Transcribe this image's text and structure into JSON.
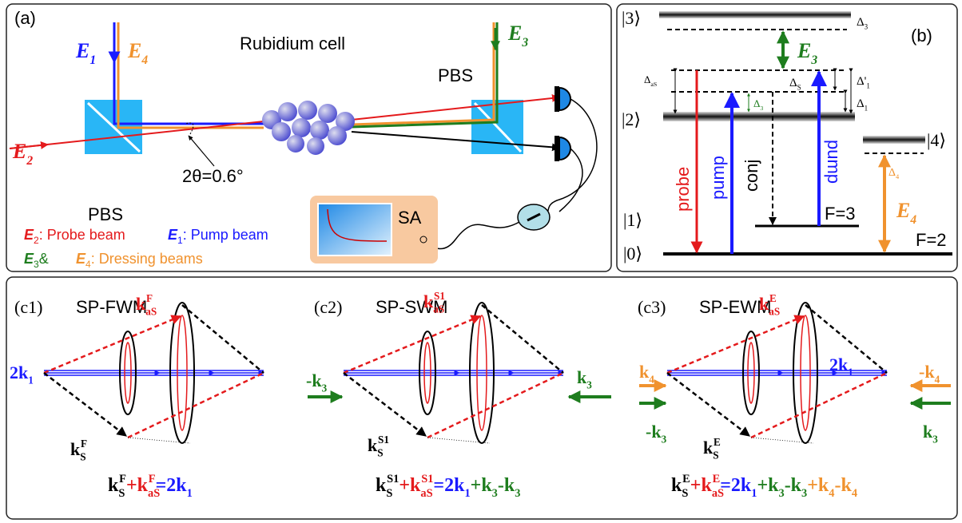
{
  "panel_a": {
    "label": "(a)",
    "cell": "Rubidium cell",
    "pbs_left": "PBS",
    "pbs_right": "PBS",
    "angle": "2θ=0.6°",
    "analyzer": "SA",
    "e1": {
      "b": "E",
      "sub": "1"
    },
    "e4": {
      "b": "E",
      "sub": "4"
    },
    "e2": {
      "b": "E",
      "sub": "2"
    },
    "e3": {
      "b": "E",
      "sub": "3"
    },
    "legend": [
      {
        "b": "E",
        "sub": "2",
        "t": ": Probe beam"
      },
      {
        "b": "E",
        "sub": "1",
        "t": ": Pump beam"
      },
      {
        "b": "E",
        "sub": "3",
        "t": "&"
      },
      {
        "b": "E",
        "sub": "4",
        "t": ": Dressing beams"
      }
    ]
  },
  "panel_b": {
    "label": "(b)",
    "level3": "|3⟩",
    "level2": "|2⟩",
    "level1": "|1⟩",
    "level0": "|0⟩",
    "level4": "|4⟩",
    "d3_top": {
      "b": "Δ",
      "sub": "3"
    },
    "d_as": {
      "b": "Δ",
      "sub": "aS"
    },
    "d_s": {
      "b": "Δ",
      "sub": "S"
    },
    "d1_prime": {
      "b": "Δ'",
      "sub": "1"
    },
    "d1": {
      "b": "Δ",
      "sub": "1"
    },
    "d3_mid": {
      "b": "Δ",
      "sub": "3"
    },
    "d4": {
      "b": "Δ",
      "sub": "4"
    },
    "e3": {
      "b": "E",
      "sub": "3"
    },
    "e4": {
      "b": "E",
      "sub": "4"
    },
    "probe": "probe",
    "pump_left": "pump",
    "conj": "conj",
    "pump_right": "pump",
    "f3": "F=3",
    "f2": "F=2"
  },
  "panel_c": [
    {
      "label": "(c1)",
      "title": "SP-FWM",
      "labels": [
        {
          "b": "2k",
          "sub": "1"
        },
        {
          "b": "k",
          "sub": "aS",
          "sup": "F"
        },
        {
          "b": "k",
          "sub": "S",
          "sup": "F"
        }
      ],
      "equation": [
        {
          "b": "k",
          "sub": "S",
          "sup": "F"
        },
        {
          "b": "+k",
          "sub": "aS",
          "sup": "F"
        },
        {
          "b": "=2k",
          "sub": "1"
        }
      ]
    },
    {
      "label": "(c2)",
      "title": "SP-SWM",
      "labels": [
        {
          "b": "-k",
          "sub": "3"
        },
        {
          "b": "k",
          "sub": "3"
        },
        {
          "b": "k",
          "sub": "aS",
          "sup": "S1"
        },
        {
          "b": "k",
          "sub": "S",
          "sup": "S1"
        }
      ],
      "equation": [
        {
          "b": "k",
          "sub": "S",
          "sup": "S1"
        },
        {
          "b": "+k",
          "sub": "aS",
          "sup": "S1"
        },
        {
          "b": "=2k",
          "sub": "1"
        },
        {
          "b": "+k",
          "sub": "3"
        },
        {
          "b": "-k",
          "sub": "3"
        }
      ]
    },
    {
      "label": "(c3)",
      "title": "SP-EWM",
      "labels": [
        {
          "b": "k",
          "sub": "4"
        },
        {
          "b": "-k",
          "sub": "3"
        },
        {
          "b": "-k",
          "sub": "4"
        },
        {
          "b": "k",
          "sub": "3"
        },
        {
          "b": "2k",
          "sub": "1"
        },
        {
          "b": "k",
          "sub": "aS",
          "sup": "E"
        },
        {
          "b": "k",
          "sub": "S",
          "sup": "E"
        }
      ],
      "equation": [
        {
          "b": "k",
          "sub": "S",
          "sup": "E"
        },
        {
          "b": "+k",
          "sub": "aS",
          "sup": "E"
        },
        {
          "b": "=2k",
          "sub": "1"
        },
        {
          "b": "+k",
          "sub": "3"
        },
        {
          "b": "-k",
          "sub": "3"
        },
        {
          "b": "+k",
          "sub": "4"
        },
        {
          "b": "-k",
          "sub": "4"
        }
      ]
    }
  ]
}
